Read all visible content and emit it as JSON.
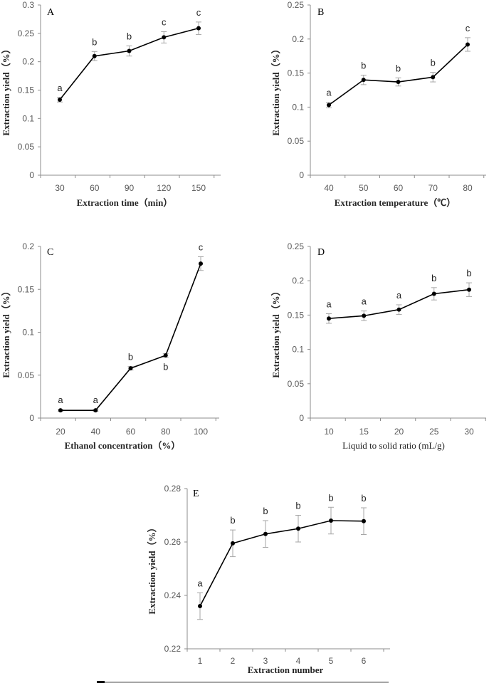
{
  "colors": {
    "line": "#000000",
    "axis": "#8c8c8c",
    "error_bar": "#a6a6a6",
    "text": "#262626"
  },
  "chart_data": [
    {
      "type": "line",
      "panel": "A",
      "xlabel": "Extraction time（min）",
      "ylabel": "Extraction yield（%）",
      "categories": [
        "30",
        "60",
        "90",
        "120",
        "150"
      ],
      "values": [
        0.133,
        0.21,
        0.219,
        0.243,
        0.259
      ],
      "errors": [
        0.004,
        0.008,
        0.009,
        0.01,
        0.011
      ],
      "letters": [
        "a",
        "b",
        "b",
        "c",
        "c"
      ],
      "yticks": [
        "0",
        "0.05",
        "0.1",
        "0.15",
        "0.2",
        "0.25",
        "0.3"
      ],
      "ylim": [
        0,
        0.3
      ]
    },
    {
      "type": "line",
      "panel": "B",
      "xlabel": "Extraction temperature（℃）",
      "ylabel": "Extraction yield（%）",
      "categories": [
        "40",
        "50",
        "60",
        "70",
        "80"
      ],
      "values": [
        0.103,
        0.14,
        0.137,
        0.144,
        0.192
      ],
      "errors": [
        0.004,
        0.007,
        0.006,
        0.007,
        0.01
      ],
      "letters": [
        "a",
        "b",
        "b",
        "b",
        "c"
      ],
      "yticks": [
        "0",
        "0.05",
        "0.1",
        "0.15",
        "0.2",
        "0.25"
      ],
      "ylim": [
        0,
        0.25
      ]
    },
    {
      "type": "line",
      "panel": "C",
      "xlabel": "Ethanol concentration（%）",
      "ylabel": "Extraction yield（%）",
      "categories": [
        "20",
        "40",
        "60",
        "80",
        "100"
      ],
      "values": [
        0.009,
        0.009,
        0.058,
        0.073,
        0.18
      ],
      "errors": [
        0.001,
        0.001,
        0.002,
        0.002,
        0.008
      ],
      "letters": [
        "a",
        "a",
        "b",
        "b",
        "c"
      ],
      "yticks": [
        "0",
        "0.05",
        "0.1",
        "0.15",
        "0.2"
      ],
      "ylim": [
        0,
        0.2
      ]
    },
    {
      "type": "line",
      "panel": "D",
      "xlabel": "Liquid to solid ratio (mL/g)",
      "ylabel": "Extraction yield（%）",
      "categories": [
        "10",
        "15",
        "20",
        "25",
        "30"
      ],
      "values": [
        0.145,
        0.149,
        0.158,
        0.181,
        0.187
      ],
      "errors": [
        0.007,
        0.007,
        0.007,
        0.009,
        0.01
      ],
      "letters": [
        "a",
        "a",
        "a",
        "b",
        "b"
      ],
      "yticks": [
        "0",
        "0.05",
        "0.1",
        "0.15",
        "0.2",
        "0.25"
      ],
      "ylim": [
        0,
        0.25
      ]
    },
    {
      "type": "line",
      "panel": "E",
      "xlabel": "Extraction number",
      "ylabel": "Extraction yield（%）",
      "categories": [
        "1",
        "2",
        "3",
        "4",
        "5",
        "6"
      ],
      "values": [
        0.236,
        0.2595,
        0.263,
        0.265,
        0.268,
        0.2678
      ],
      "errors": [
        0.005,
        0.005,
        0.005,
        0.005,
        0.005,
        0.005
      ],
      "letters": [
        "a",
        "b",
        "b",
        "b",
        "b",
        "b"
      ],
      "yticks": [
        "0.22",
        "0.24",
        "0.26",
        "0.28"
      ],
      "ylim": [
        0.22,
        0.28
      ]
    }
  ]
}
